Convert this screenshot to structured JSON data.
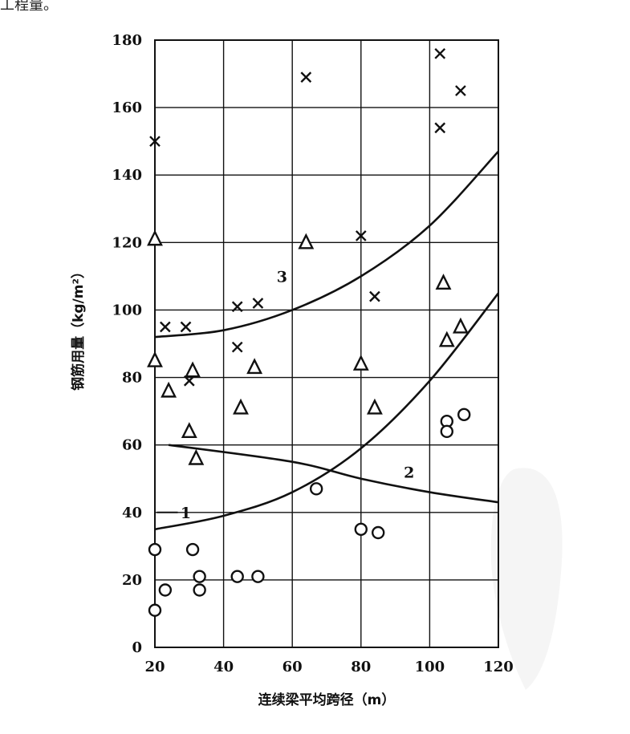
{
  "page": {
    "top_fragment": "工程量。"
  },
  "chart_data": {
    "type": "scatter",
    "title": "",
    "xlabel": "连续梁平均跨径（m）",
    "ylabel": "钢筋用量（kg/m²）",
    "xlim": [
      20,
      120
    ],
    "ylim": [
      0,
      180
    ],
    "xticks": [
      20,
      40,
      60,
      80,
      100,
      120
    ],
    "yticks": [
      0,
      20,
      40,
      60,
      80,
      100,
      120,
      140,
      160,
      180
    ],
    "grid": true,
    "markers": {
      "circle": "○",
      "triangle": "△",
      "cross": "×"
    },
    "series": [
      {
        "marker": "circle",
        "points": [
          [
            20,
            11
          ],
          [
            20,
            29
          ],
          [
            23,
            17
          ],
          [
            31,
            29
          ],
          [
            33,
            21
          ],
          [
            33,
            17
          ],
          [
            44,
            21
          ],
          [
            50,
            21
          ],
          [
            67,
            47
          ],
          [
            80,
            35
          ],
          [
            85,
            34
          ],
          [
            105,
            67
          ],
          [
            105,
            64
          ],
          [
            110,
            69
          ]
        ]
      },
      {
        "marker": "triangle",
        "points": [
          [
            20,
            121
          ],
          [
            20,
            85
          ],
          [
            24,
            76
          ],
          [
            30,
            64
          ],
          [
            31,
            82
          ],
          [
            32,
            56
          ],
          [
            45,
            71
          ],
          [
            49,
            83
          ],
          [
            64,
            120
          ],
          [
            80,
            84
          ],
          [
            84,
            71
          ],
          [
            104,
            108
          ],
          [
            105,
            91
          ],
          [
            109,
            95
          ]
        ]
      },
      {
        "marker": "cross",
        "points": [
          [
            20,
            150
          ],
          [
            23,
            95
          ],
          [
            29,
            95
          ],
          [
            30,
            79
          ],
          [
            44,
            101
          ],
          [
            44,
            89
          ],
          [
            50,
            102
          ],
          [
            64,
            169
          ],
          [
            80,
            122
          ],
          [
            84,
            104
          ],
          [
            103,
            176
          ],
          [
            103,
            154
          ],
          [
            109,
            165
          ]
        ]
      }
    ],
    "curves": [
      {
        "label": "1",
        "points": [
          [
            24,
            60
          ],
          [
            60,
            55
          ],
          [
            80,
            50
          ],
          [
            100,
            46
          ],
          [
            120,
            43
          ]
        ]
      },
      {
        "label": "2",
        "points": [
          [
            20,
            35
          ],
          [
            40,
            39
          ],
          [
            60,
            46
          ],
          [
            80,
            59
          ],
          [
            100,
            79
          ],
          [
            120,
            105
          ]
        ]
      },
      {
        "label": "3",
        "points": [
          [
            20,
            92
          ],
          [
            40,
            94
          ],
          [
            60,
            100
          ],
          [
            80,
            110
          ],
          [
            100,
            125
          ],
          [
            120,
            147
          ]
        ]
      }
    ],
    "curve_labels": [
      {
        "text": "1",
        "x": 29,
        "y": 40
      },
      {
        "text": "2",
        "x": 94,
        "y": 52
      },
      {
        "text": "3",
        "x": 57,
        "y": 110
      }
    ]
  }
}
